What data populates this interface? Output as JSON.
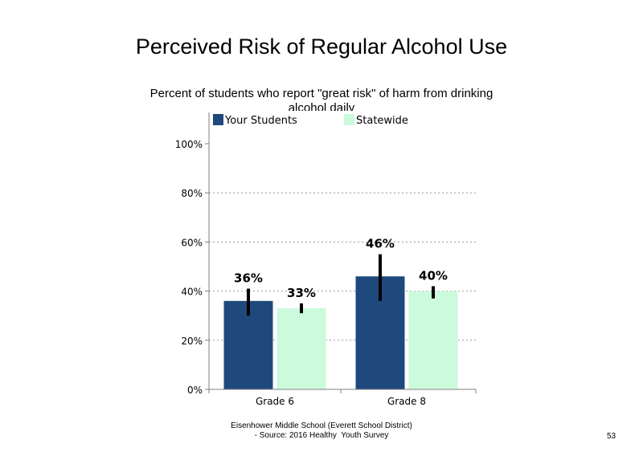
{
  "slide": {
    "title": "Perceived Risk of Regular Alcohol Use",
    "subtitle": "Percent of students who report \"great risk\" of harm from drinking alcohol daily",
    "footer_line1": "Eisenhower Middle School (Everett School District)",
    "footer_line2": "- Source: 2016 Healthy  Youth Survey",
    "page_number": "53"
  },
  "chart_data": {
    "type": "bar",
    "title": "Perceived Risk of Regular Alcohol Use",
    "subtitle": "Percent of students who report \"great risk\" of harm from drinking alcohol daily",
    "categories": [
      "Grade 6",
      "Grade 8"
    ],
    "series": [
      {
        "name": "Your Students",
        "color": "#1f497d",
        "values": [
          36,
          46
        ],
        "labels": [
          "36%",
          "46%"
        ],
        "error_low": [
          30,
          36
        ],
        "error_high": [
          41,
          55
        ]
      },
      {
        "name": "Statewide",
        "color": "#ccfadc",
        "values": [
          33,
          40
        ],
        "labels": [
          "33%",
          "40%"
        ],
        "error_low": [
          31,
          37
        ],
        "error_high": [
          35,
          42
        ]
      }
    ],
    "ylim": [
      0,
      100
    ],
    "yticks": [
      "0%",
      "20%",
      "40%",
      "60%",
      "80%",
      "100%"
    ],
    "ytick_values": [
      0,
      20,
      40,
      60,
      80,
      100
    ],
    "grid": "dotted horizontal",
    "legend": "top-left",
    "xlabel": "",
    "ylabel": ""
  }
}
